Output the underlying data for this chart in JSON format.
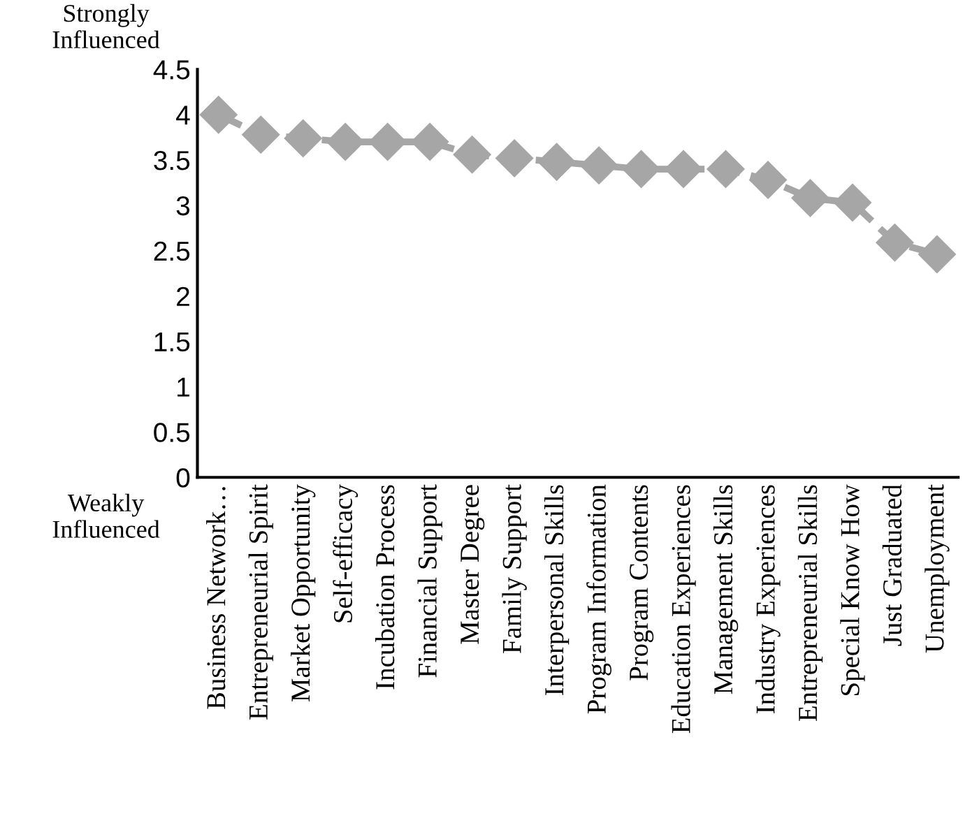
{
  "chart_data": {
    "type": "line",
    "categories": [
      "Business Network…",
      "Entrepreneurial Spirit",
      "Market Opportunity",
      "Self-efficacy",
      "Incubation Process",
      "Financial Support",
      "Master Degree",
      "Family Support",
      "Interpersonal Skills",
      "Program Information",
      "Program Contents",
      "Education Experiences",
      "Management Skills",
      "Industry Experiences",
      "Entrepreneurial Skills",
      "Special Know How",
      "Just Graduated",
      "Unemployment"
    ],
    "series": [
      {
        "color": "#a6a6a6",
        "values": [
          4.0,
          3.78,
          3.74,
          3.7,
          3.7,
          3.7,
          3.56,
          3.52,
          3.48,
          3.44,
          3.4,
          3.4,
          3.4,
          3.28,
          3.08,
          3.03,
          2.59,
          2.46
        ]
      }
    ],
    "ylim": [
      0,
      4.5
    ],
    "yticks": [
      0,
      0.5,
      1,
      1.5,
      2,
      2.5,
      3,
      3.5,
      4,
      4.5
    ],
    "grid": false,
    "legend": false,
    "marker": "diamond",
    "line_style": "dashed",
    "annotations": [
      "Strongly\nInfluenced",
      "Weakly\nInfluenced"
    ]
  }
}
